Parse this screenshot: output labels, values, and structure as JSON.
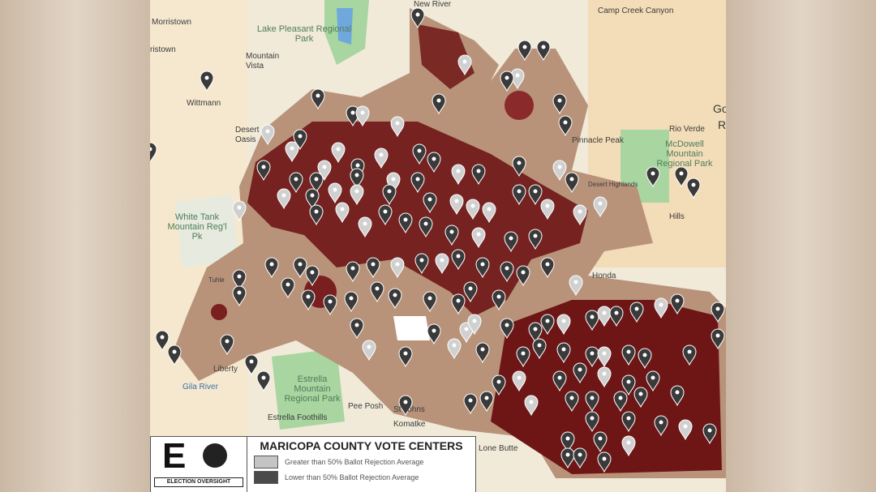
{
  "map": {
    "places": [
      "Morristown",
      "ristown",
      "Lake Pleasant Regional Park",
      "Mountain Vista",
      "Wittmann",
      "Desert Oasis",
      "New River",
      "Camp Creek Canyon",
      "Pinnacle Peak",
      "Rio Verde",
      "McDowell Mountain Regional Park",
      "Desert Highlands",
      "White Tank Mountain Reg'l Pk",
      "Tuhle",
      "Liberty",
      "Gila River",
      "Estrella Mountain Regional Park",
      "Estrella Foothills",
      "Pee Posh",
      "St Johns",
      "Komatke",
      "Lone Butte",
      "Honda",
      "Hills",
      "Go",
      "R"
    ],
    "colors": {
      "county_fill": "#b8937a",
      "hotspot": "#6e1616",
      "pin_light": "#d0d0d0",
      "pin_dark": "#3a3a3a",
      "park": "#a8d5a0",
      "water": "#6fa8dc"
    }
  },
  "legend": {
    "title": "MARICOPA COUNTY VOTE CENTERS",
    "items": [
      {
        "label": "Greater than 50% Ballot Rejection Average",
        "color": "#c4c4c4"
      },
      {
        "label": "Lower than 50% Ballot Rejection Average",
        "color": "#4a4a4a"
      }
    ],
    "logo_text": "ELECTION OVERSIGHT"
  }
}
